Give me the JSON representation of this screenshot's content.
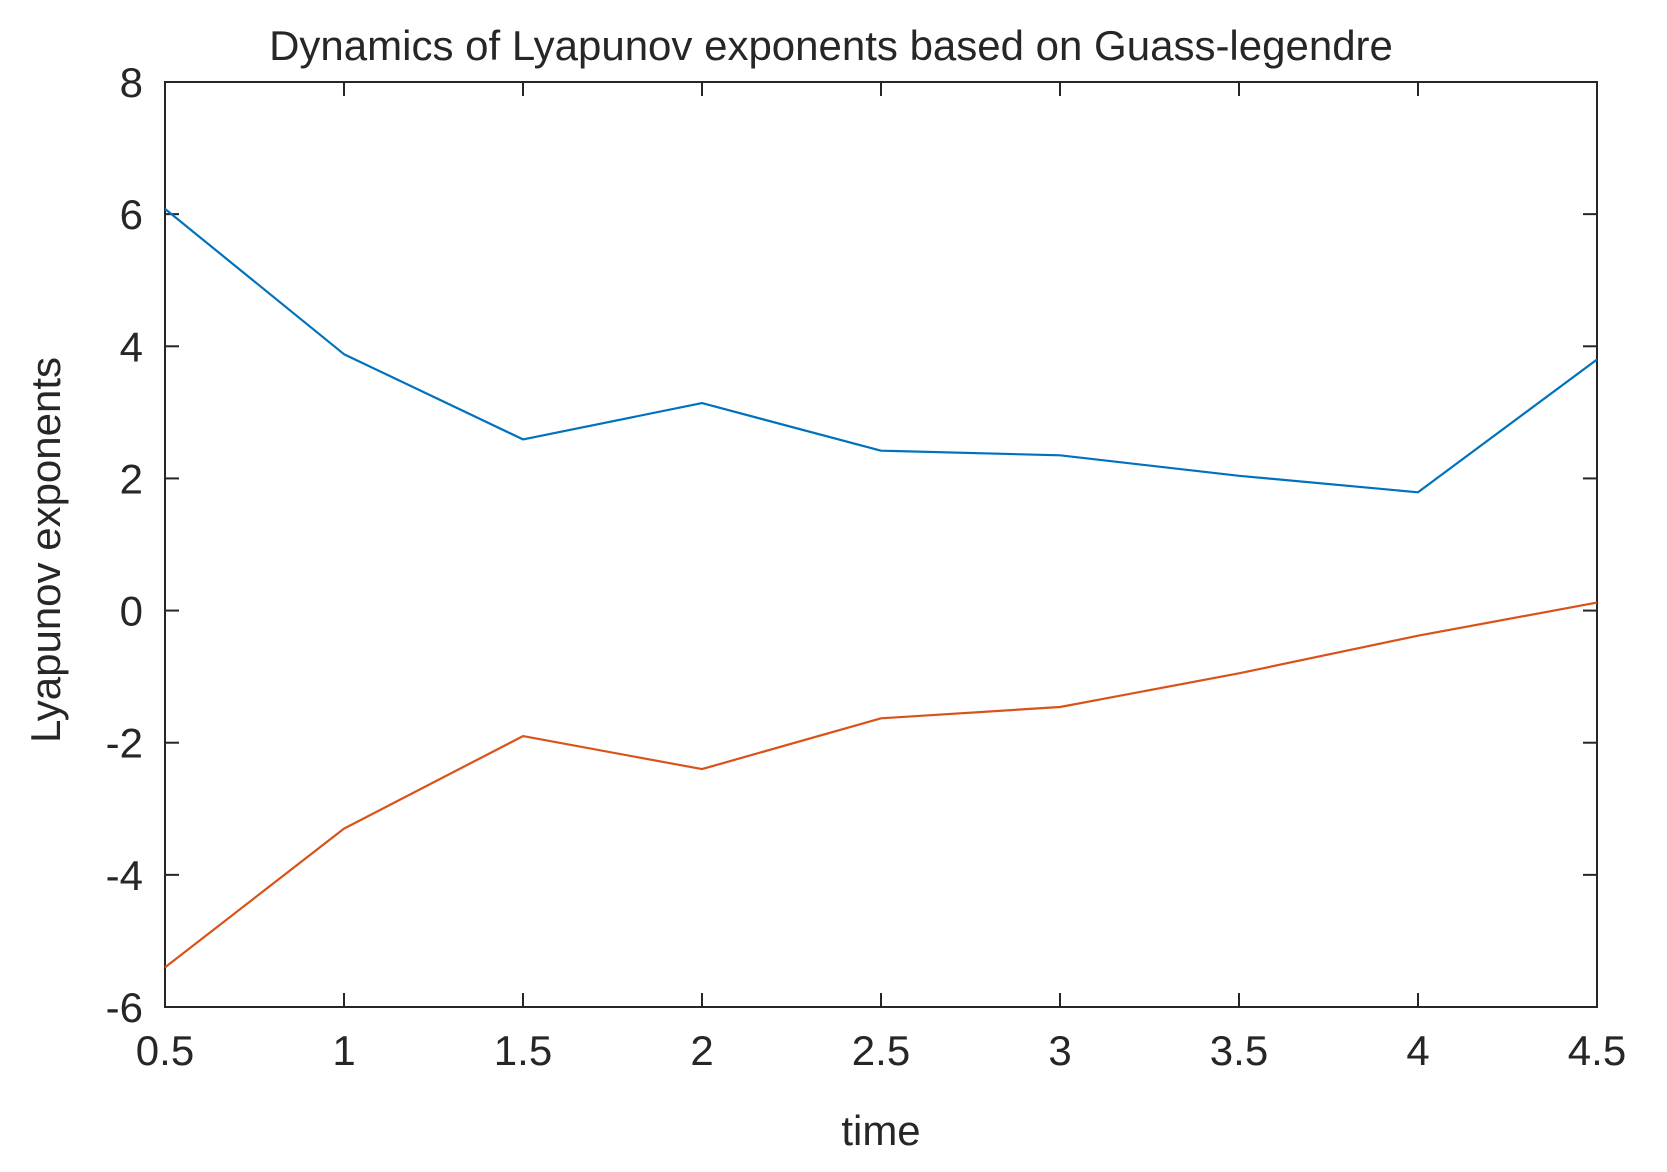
{
  "chart_data": {
    "type": "line",
    "title": "Dynamics of Lyapunov exponents based on Guass-legendre",
    "xlabel": "time",
    "ylabel": "Lyapunov exponents",
    "xlim": [
      0.5,
      4.5
    ],
    "ylim": [
      -6,
      8
    ],
    "xticks": [
      0.5,
      1,
      1.5,
      2,
      2.5,
      3,
      3.5,
      4,
      4.5
    ],
    "xtick_labels": [
      "0.5",
      "1",
      "1.5",
      "2",
      "2.5",
      "3",
      "3.5",
      "4",
      "4.5"
    ],
    "yticks": [
      -6,
      -4,
      -2,
      0,
      2,
      4,
      6,
      8
    ],
    "ytick_labels": [
      "-6",
      "-4",
      "-2",
      "0",
      "2",
      "4",
      "6",
      "8"
    ],
    "grid": false,
    "x": [
      0.5,
      1,
      1.5,
      2,
      2.5,
      3,
      3.5,
      4,
      4.5
    ],
    "series": [
      {
        "values": [
          6.08,
          3.88,
          2.59,
          3.14,
          2.42,
          2.35,
          2.04,
          1.79,
          3.8
        ],
        "color": "#0072BD"
      },
      {
        "values": [
          -5.4,
          -3.3,
          -1.9,
          -2.4,
          -1.63,
          -1.46,
          -0.95,
          -0.38,
          0.12
        ],
        "color": "#D95319"
      }
    ]
  }
}
